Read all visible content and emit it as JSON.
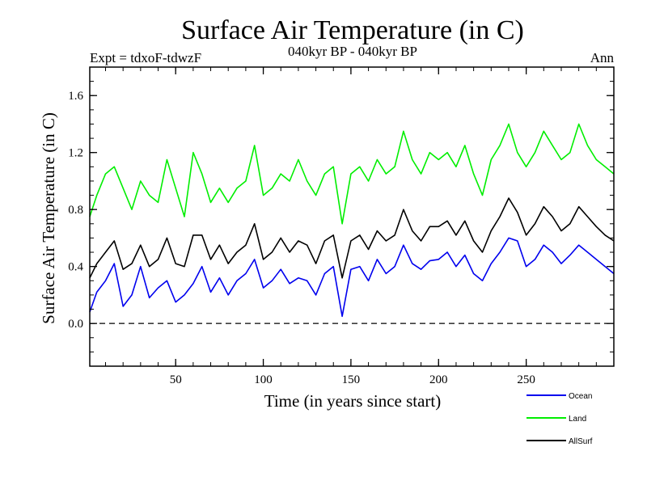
{
  "chart_data": {
    "type": "line",
    "title": "Surface Air Temperature (in C)",
    "subtitle": "040kyr BP - 040kyr BP",
    "left_label": "Expt = tdxoF-tdwzF",
    "right_label": "Ann",
    "xlabel": "Time (in years since start)",
    "ylabel": "Surface Air Temperature (in C)",
    "xlim": [
      1,
      300
    ],
    "ylim": [
      -0.3,
      1.8
    ],
    "xticks": [
      50,
      100,
      150,
      200,
      250
    ],
    "xtick_labels": [
      "50",
      "100",
      "150",
      "200",
      "250"
    ],
    "yticks": [
      0.0,
      0.4,
      0.8,
      1.2,
      1.6
    ],
    "ytick_labels": [
      "0.0",
      "0.4",
      "0.8",
      "1.2",
      "1.6"
    ],
    "zero_line": true,
    "legend_position": "bottom-right",
    "x": [
      1,
      5,
      10,
      15,
      20,
      25,
      30,
      35,
      40,
      45,
      50,
      55,
      60,
      65,
      70,
      75,
      80,
      85,
      90,
      95,
      100,
      105,
      110,
      115,
      120,
      125,
      130,
      135,
      140,
      145,
      150,
      155,
      160,
      165,
      170,
      175,
      180,
      185,
      190,
      195,
      200,
      205,
      210,
      215,
      220,
      225,
      230,
      235,
      240,
      245,
      250,
      255,
      260,
      265,
      270,
      275,
      280,
      285,
      290,
      295,
      300
    ],
    "series": [
      {
        "name": "Ocean",
        "color": "#0000ee",
        "values": [
          0.08,
          0.22,
          0.3,
          0.42,
          0.12,
          0.2,
          0.4,
          0.18,
          0.25,
          0.3,
          0.15,
          0.2,
          0.28,
          0.4,
          0.22,
          0.32,
          0.2,
          0.3,
          0.35,
          0.45,
          0.25,
          0.3,
          0.38,
          0.28,
          0.32,
          0.3,
          0.2,
          0.35,
          0.4,
          0.05,
          0.38,
          0.4,
          0.3,
          0.45,
          0.35,
          0.4,
          0.55,
          0.42,
          0.38,
          0.44,
          0.45,
          0.5,
          0.4,
          0.48,
          0.35,
          0.3,
          0.42,
          0.5,
          0.6,
          0.58,
          0.4,
          0.45,
          0.55,
          0.5,
          0.42,
          0.48,
          0.55,
          0.5,
          0.45,
          0.4,
          0.35
        ]
      },
      {
        "name": "Land",
        "color": "#00ee00",
        "values": [
          0.75,
          0.9,
          1.05,
          1.1,
          0.95,
          0.8,
          1.0,
          0.9,
          0.85,
          1.15,
          0.95,
          0.75,
          1.2,
          1.05,
          0.85,
          0.95,
          0.85,
          0.95,
          1.0,
          1.25,
          0.9,
          0.95,
          1.05,
          1.0,
          1.15,
          1.0,
          0.9,
          1.05,
          1.1,
          0.7,
          1.05,
          1.1,
          1.0,
          1.15,
          1.05,
          1.1,
          1.35,
          1.15,
          1.05,
          1.2,
          1.15,
          1.2,
          1.1,
          1.25,
          1.05,
          0.9,
          1.15,
          1.25,
          1.4,
          1.2,
          1.1,
          1.2,
          1.35,
          1.25,
          1.15,
          1.2,
          1.4,
          1.25,
          1.15,
          1.1,
          1.05
        ]
      },
      {
        "name": "AllSurf",
        "color": "#000000",
        "values": [
          0.32,
          0.42,
          0.5,
          0.58,
          0.38,
          0.42,
          0.55,
          0.4,
          0.45,
          0.6,
          0.42,
          0.4,
          0.62,
          0.62,
          0.45,
          0.55,
          0.42,
          0.5,
          0.55,
          0.7,
          0.45,
          0.5,
          0.6,
          0.5,
          0.58,
          0.55,
          0.42,
          0.58,
          0.62,
          0.32,
          0.58,
          0.62,
          0.52,
          0.65,
          0.58,
          0.62,
          0.8,
          0.65,
          0.58,
          0.68,
          0.68,
          0.72,
          0.62,
          0.72,
          0.58,
          0.5,
          0.65,
          0.75,
          0.88,
          0.78,
          0.62,
          0.7,
          0.82,
          0.75,
          0.65,
          0.7,
          0.82,
          0.75,
          0.68,
          0.62,
          0.58
        ]
      }
    ]
  }
}
